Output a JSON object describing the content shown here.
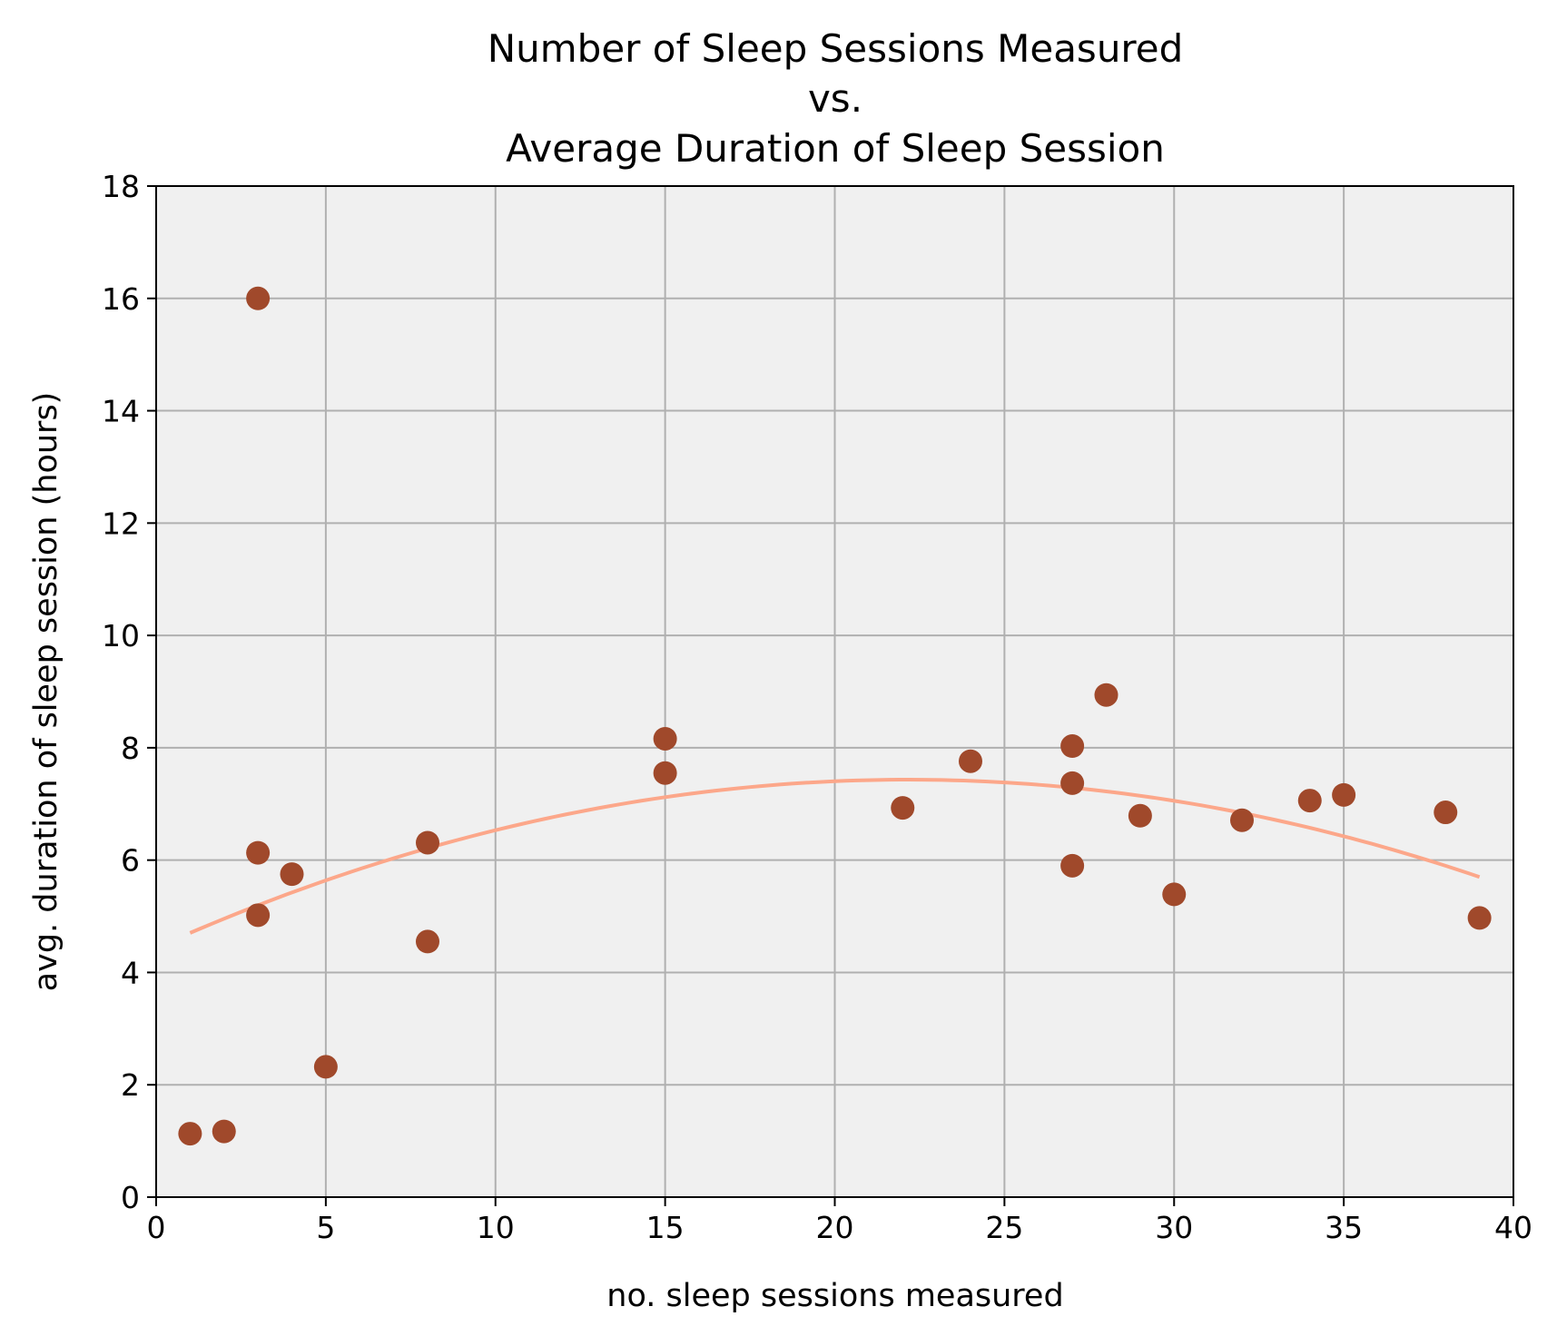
{
  "chart_data": {
    "type": "scatter",
    "title_lines": [
      "Number of Sleep Sessions Measured",
      "vs.",
      "Average Duration of Sleep Session"
    ],
    "xlabel": "no. sleep sessions measured",
    "ylabel": "avg. duration of sleep session (hours)",
    "xlim": [
      0,
      40
    ],
    "ylim": [
      0,
      18
    ],
    "xticks": [
      "0",
      "5",
      "10",
      "15",
      "20",
      "25",
      "30",
      "35",
      "40"
    ],
    "yticks": [
      "0",
      "2",
      "4",
      "6",
      "8",
      "10",
      "12",
      "14",
      "16",
      "18"
    ],
    "grid": true,
    "colors": {
      "background": "#f0f0f0",
      "points": "#a0492b",
      "trend": "#fca78a",
      "grid": "#b0b0b0"
    },
    "points": [
      {
        "x": 1,
        "y": 1.13
      },
      {
        "x": 2,
        "y": 1.17
      },
      {
        "x": 3,
        "y": 16.0
      },
      {
        "x": 3,
        "y": 6.13
      },
      {
        "x": 3,
        "y": 5.02
      },
      {
        "x": 4,
        "y": 5.75
      },
      {
        "x": 5,
        "y": 2.32
      },
      {
        "x": 8,
        "y": 6.31
      },
      {
        "x": 8,
        "y": 4.55
      },
      {
        "x": 15,
        "y": 8.16
      },
      {
        "x": 15,
        "y": 7.55
      },
      {
        "x": 22,
        "y": 6.93
      },
      {
        "x": 24,
        "y": 7.76
      },
      {
        "x": 27,
        "y": 8.03
      },
      {
        "x": 27,
        "y": 7.37
      },
      {
        "x": 27,
        "y": 5.9
      },
      {
        "x": 28,
        "y": 8.94
      },
      {
        "x": 29,
        "y": 6.79
      },
      {
        "x": 30,
        "y": 5.39
      },
      {
        "x": 32,
        "y": 6.71
      },
      {
        "x": 34,
        "y": 7.06
      },
      {
        "x": 35,
        "y": 7.16
      },
      {
        "x": 38,
        "y": 6.85
      },
      {
        "x": 39,
        "y": 4.97
      }
    ],
    "trend_curve": {
      "type": "quadratic",
      "x_range": [
        1,
        39
      ],
      "coefficients": {
        "a": -0.0061,
        "b": 0.2702,
        "c": 4.44
      }
    }
  }
}
